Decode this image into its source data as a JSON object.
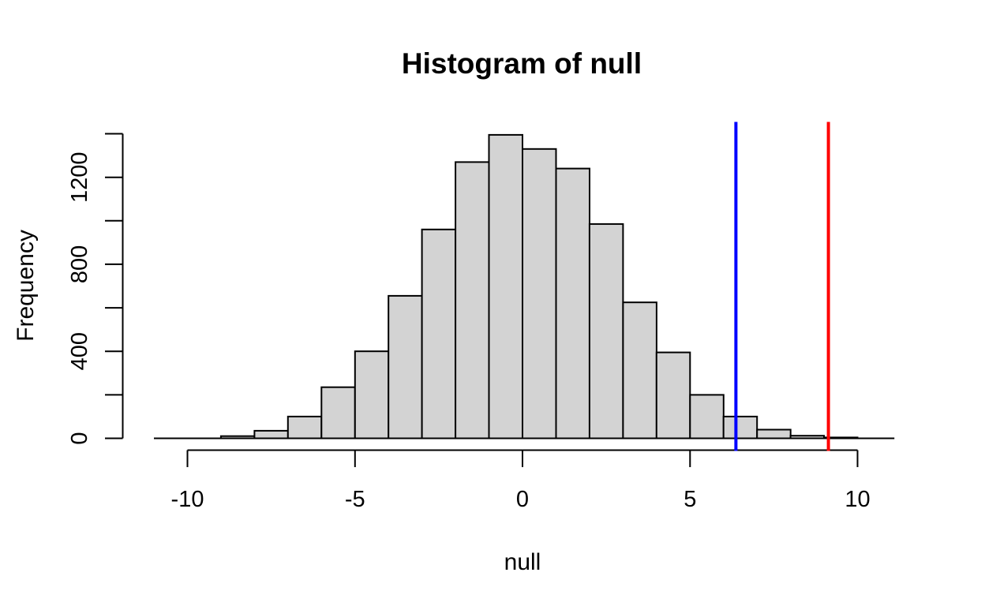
{
  "chart_data": {
    "type": "histogram",
    "title": "Histogram of null",
    "xlabel": "null",
    "ylabel": "Frequency",
    "bins": {
      "start": -9,
      "width": 1,
      "counts": [
        10,
        35,
        100,
        235,
        400,
        655,
        960,
        1270,
        1395,
        1330,
        1240,
        985,
        625,
        395,
        200,
        100,
        40,
        12,
        4
      ]
    },
    "x_ticks": [
      -10,
      -5,
      0,
      5,
      10
    ],
    "y_ticks_labeled": [
      0,
      400,
      800,
      1200
    ],
    "y_ticks_all": [
      0,
      200,
      400,
      600,
      800,
      1000,
      1200,
      1400
    ],
    "xlim": [
      -11,
      11.1
    ],
    "ylim": [
      0,
      1456
    ],
    "grid": "off",
    "legend": "none",
    "colors": {
      "bar_fill": "#d3d3d3",
      "bar_stroke": "#000000",
      "axis": "#000000",
      "background": "#ffffff"
    },
    "vlines": [
      {
        "name": "blue-vline",
        "x": 6.37,
        "color": "#0000ff"
      },
      {
        "name": "red-vline",
        "x": 9.13,
        "color": "#ff0000"
      }
    ]
  }
}
